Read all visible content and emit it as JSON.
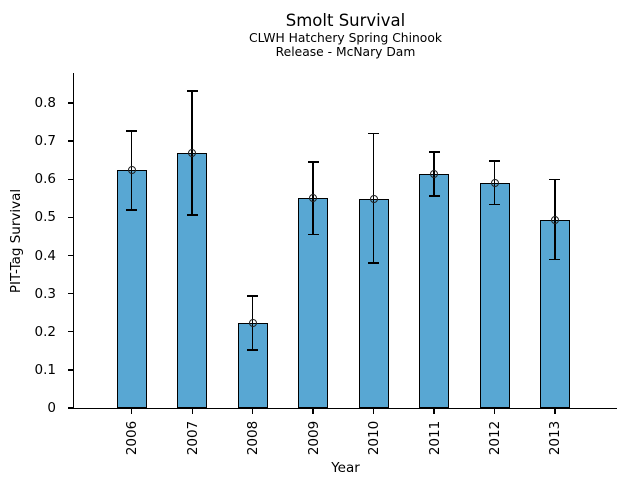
{
  "chart_data": {
    "type": "bar",
    "title": "Smolt Survival",
    "subtitle_line1": "CLWH Hatchery Spring Chinook",
    "subtitle_line2": "Release - McNary Dam",
    "xlabel": "Year",
    "ylabel": "PIT-Tag Survival",
    "categories": [
      "2006",
      "2007",
      "2008",
      "2009",
      "2010",
      "2011",
      "2012",
      "2013"
    ],
    "values": [
      0.624,
      0.668,
      0.222,
      0.552,
      0.548,
      0.615,
      0.591,
      0.493
    ],
    "error_low": [
      0.52,
      0.507,
      0.152,
      0.455,
      0.381,
      0.556,
      0.534,
      0.39
    ],
    "error_high": [
      0.727,
      0.832,
      0.293,
      0.645,
      0.72,
      0.672,
      0.648,
      0.599
    ],
    "yticks": [
      0,
      0.1,
      0.2,
      0.3,
      0.4,
      0.5,
      0.6,
      0.7,
      0.8
    ],
    "ytick_labels": [
      "0",
      "0.1",
      "0.2",
      "0.3",
      "0.4",
      "0.5",
      "0.6",
      "0.7",
      "0.8"
    ],
    "ylim": [
      0,
      0.879
    ],
    "xtick_rotation": 90,
    "grid": false,
    "legend": null,
    "marker": "open-circle",
    "bar_color": "#58A7D3",
    "bar_edge_color": "#000000",
    "error_color": "#000000"
  }
}
